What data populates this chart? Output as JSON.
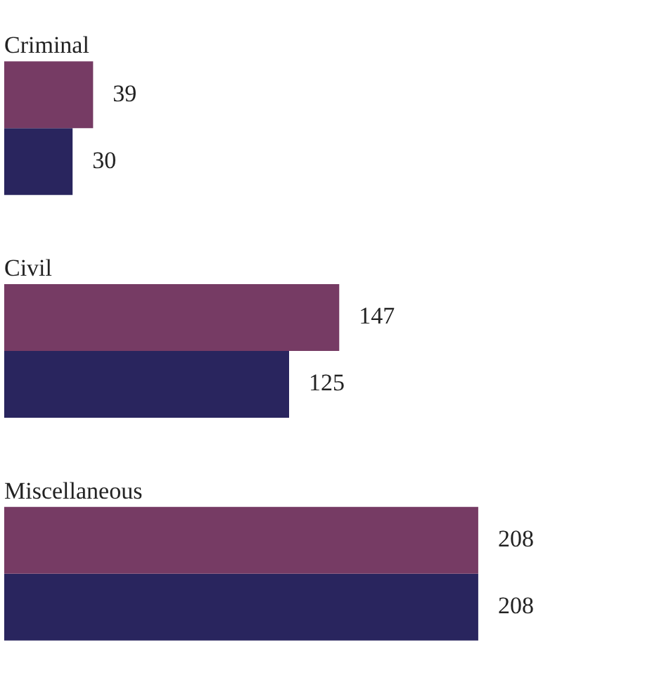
{
  "chart_data": {
    "type": "bar",
    "orientation": "horizontal",
    "categories": [
      "Criminal",
      "Civil",
      "Miscellaneous"
    ],
    "series": [
      {
        "color": "#763b64",
        "values": [
          39,
          147,
          208
        ]
      },
      {
        "color": "#29255e",
        "values": [
          30,
          125,
          208
        ]
      }
    ],
    "data_labels": true,
    "legend": false
  }
}
